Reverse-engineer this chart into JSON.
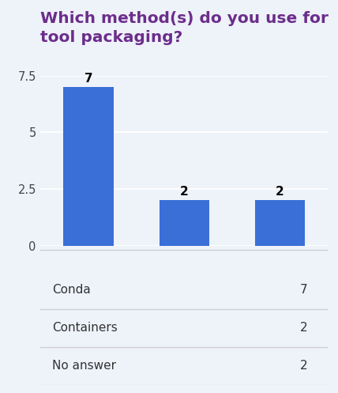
{
  "title_line1": "Which method(s) do you use for",
  "title_line2": "tool packaging?",
  "title_color": "#6b2d8b",
  "categories": [
    "Conda",
    "Containers",
    "No answer"
  ],
  "values": [
    7,
    2,
    2
  ],
  "bar_color": "#3a6fd8",
  "ylim": [
    0,
    7.5
  ],
  "yticks": [
    0,
    2.5,
    5,
    7.5
  ],
  "ytick_labels": [
    "0",
    "2.5",
    "5",
    "7.5"
  ],
  "bar_labels": [
    "7",
    "2",
    "2"
  ],
  "bar_label_fontsize": 11,
  "background_color": "#eef2f9",
  "table_rows": [
    [
      "Conda",
      "7"
    ],
    [
      "Containers",
      "2"
    ],
    [
      "No answer",
      "2"
    ]
  ],
  "figsize": [
    4.28,
    4.97
  ],
  "dpi": 100
}
